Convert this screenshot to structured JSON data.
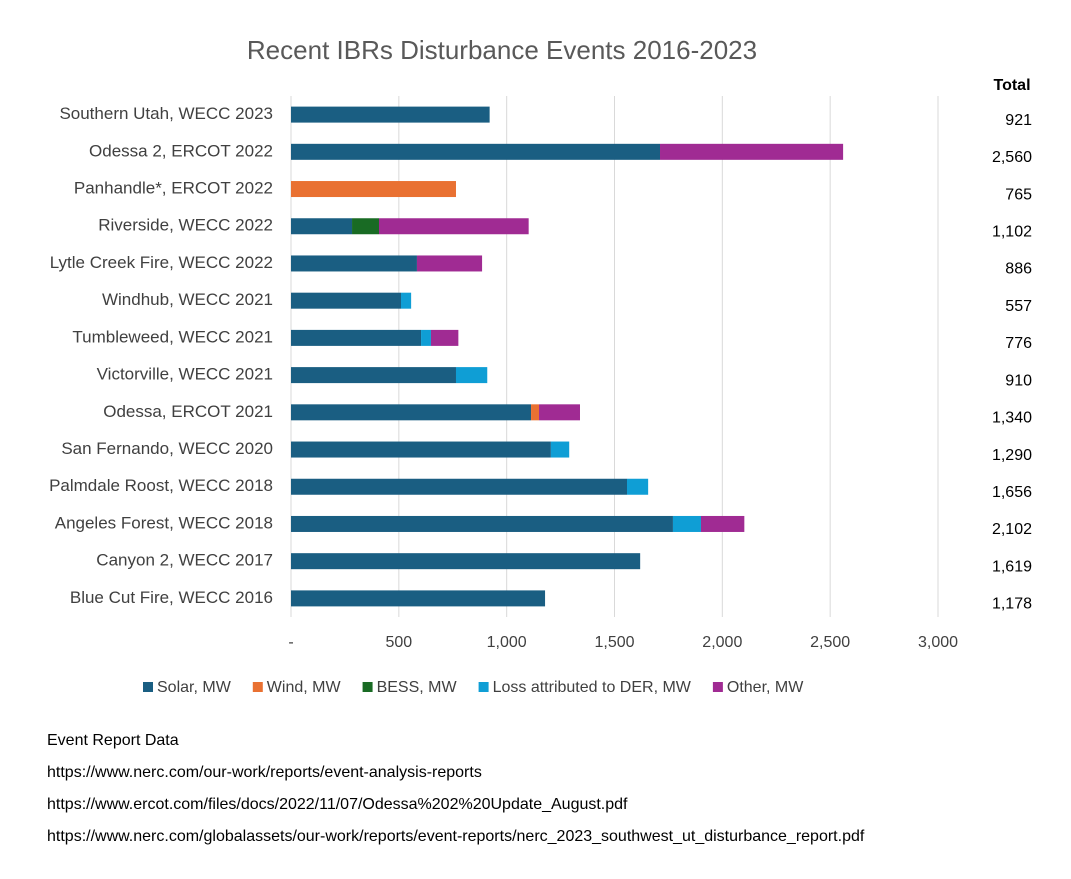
{
  "chart_data": {
    "type": "stacked-bar-horizontal",
    "title": "Recent IBRs Disturbance Events 2016-2023",
    "categories": [
      "Southern Utah, WECC 2023",
      "Odessa 2, ERCOT 2022",
      "Panhandle*, ERCOT 2022",
      "Riverside, WECC 2022",
      "Lytle Creek Fire, WECC 2022",
      "Windhub, WECC 2021",
      "Tumbleweed, WECC 2021",
      "Victorville, WECC 2021",
      "Odessa, ERCOT 2021",
      "San Fernando, WECC 2020",
      "Palmdale Roost, WECC 2018",
      "Angeles Forest, WECC 2018",
      "Canyon 2, WECC 2017",
      "Blue Cut Fire, WECC 2016"
    ],
    "series": [
      {
        "name": "Solar, MW",
        "color": "#1a5e82",
        "values": [
          921,
          1711,
          null,
          283,
          584,
          510,
          603,
          765,
          1113,
          1205,
          1558,
          1771,
          1619,
          1178
        ]
      },
      {
        "name": "Wind, MW",
        "color": "#e97132",
        "values": [
          null,
          null,
          765,
          null,
          null,
          null,
          null,
          null,
          37,
          null,
          null,
          null,
          null,
          null
        ]
      },
      {
        "name": "BESS, MW",
        "color": "#196b24",
        "values": [
          null,
          null,
          null,
          125,
          null,
          null,
          null,
          null,
          null,
          null,
          null,
          null,
          null,
          null
        ]
      },
      {
        "name": "Loss attributed to DER, MW",
        "color": "#0f9ed5",
        "values": [
          null,
          null,
          null,
          null,
          null,
          47,
          46,
          145,
          null,
          85,
          98,
          130,
          null,
          null
        ]
      },
      {
        "name": "Other, MW",
        "color": "#a02b93",
        "values": [
          null,
          849,
          null,
          694,
          302,
          null,
          127,
          null,
          190,
          null,
          null,
          201,
          null,
          null
        ]
      }
    ],
    "total_header": "Total",
    "total_labels": [
      "921",
      "2,560",
      "765",
      "1,102",
      "886",
      "557",
      "776",
      "910",
      "1,340",
      "1,290",
      "1,656",
      "2,102",
      "1,619",
      "1,178"
    ],
    "xlim": [
      0,
      3000
    ],
    "xticks": [
      {
        "value": 0,
        "label": "-"
      },
      500,
      {
        "value": 1000,
        "label": "1,000"
      },
      {
        "value": 1500,
        "label": "1,500"
      },
      {
        "value": 2000,
        "label": "2,000"
      },
      {
        "value": 2500,
        "label": "2,500"
      },
      {
        "value": 3000,
        "label": "3,000"
      }
    ],
    "grid": true,
    "legend": "bottom"
  },
  "notes": [
    "Event Report Data",
    "https://www.nerc.com/our-work/reports/event-analysis-reports",
    "https://www.ercot.com/files/docs/2022/11/07/Odessa%202%20Update_August.pdf",
    "https://www.nerc.com/globalassets/our-work/reports/event-reports/nerc_2023_southwest_ut_disturbance_report.pdf"
  ]
}
